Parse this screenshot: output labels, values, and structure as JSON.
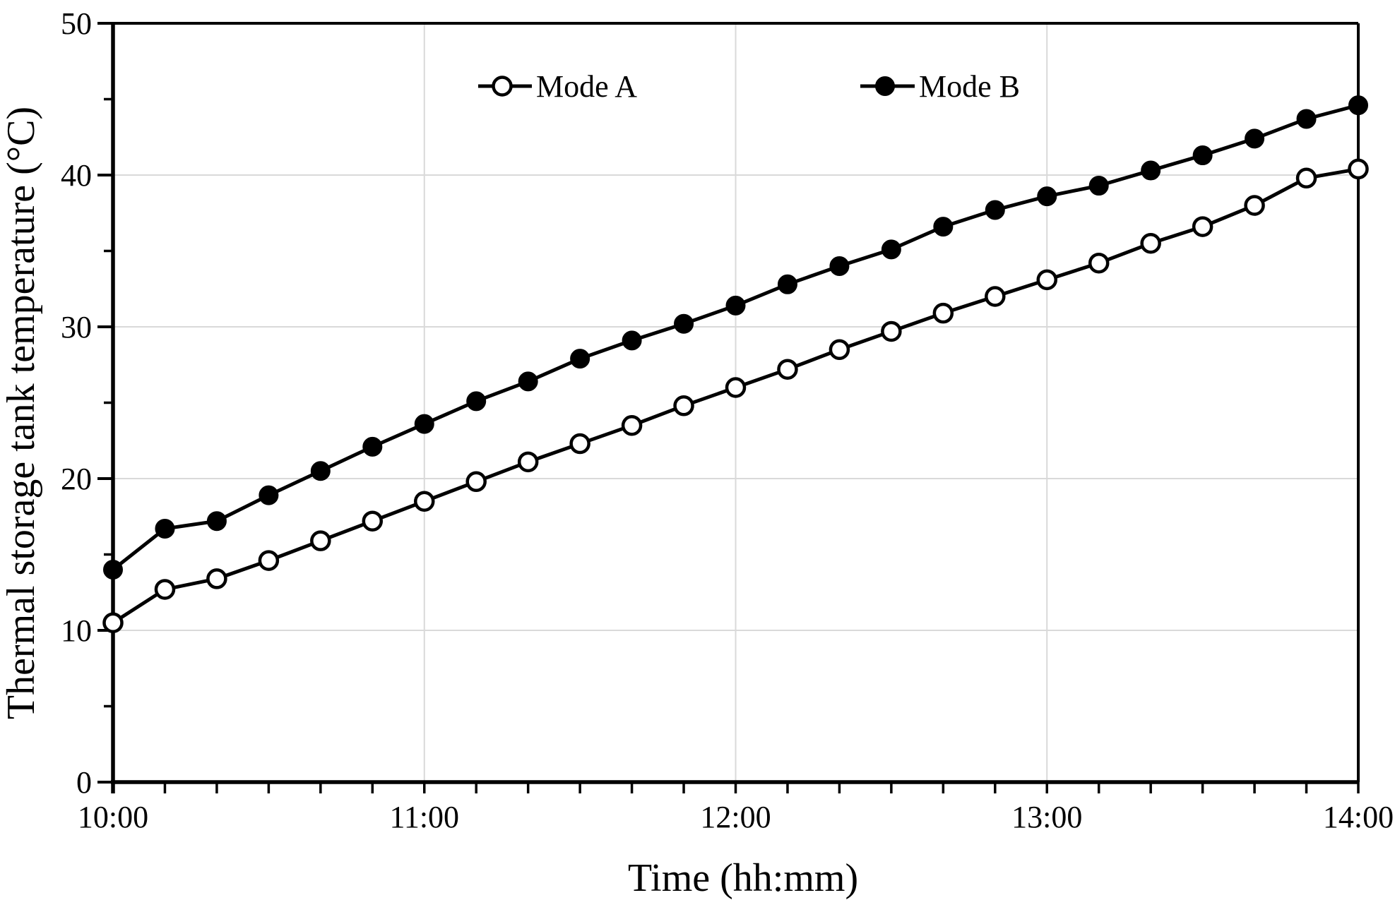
{
  "chart_data": {
    "type": "line",
    "title": "",
    "xlabel": "Time (hh:mm)",
    "ylabel": "Thermal storage tank temperature (°C)",
    "x_minutes": [
      600,
      610,
      620,
      630,
      640,
      650,
      660,
      670,
      680,
      690,
      700,
      710,
      720,
      730,
      740,
      750,
      760,
      770,
      780,
      790,
      800,
      810,
      820,
      830,
      840
    ],
    "x_tick_minutes": [
      600,
      660,
      720,
      780,
      840
    ],
    "x_tick_labels": [
      "10:00",
      "11:00",
      "12:00",
      "13:00",
      "14:00"
    ],
    "xlim_minutes": [
      600,
      840
    ],
    "ylim": [
      0,
      50
    ],
    "y_major_ticks": [
      0,
      10,
      20,
      30,
      40,
      50
    ],
    "y_minor_ticks": [
      5,
      15,
      25,
      35,
      45
    ],
    "grid": {
      "on": true,
      "horizontal_at": [
        10,
        20,
        30,
        40
      ],
      "vertical_at_minutes": [
        660,
        720,
        780
      ]
    },
    "legend": {
      "position": "top-inside-horizontal"
    },
    "series": [
      {
        "name": "Mode A",
        "marker": "open-circle",
        "color": "#000000",
        "values": [
          10.5,
          12.7,
          13.4,
          14.6,
          15.9,
          17.2,
          18.5,
          19.8,
          21.1,
          22.3,
          23.5,
          24.8,
          26.0,
          27.2,
          28.5,
          29.7,
          30.9,
          32.0,
          33.1,
          34.2,
          35.5,
          36.6,
          38.0,
          39.8,
          40.4
        ]
      },
      {
        "name": "Mode B",
        "marker": "filled-circle",
        "color": "#000000",
        "values": [
          14.0,
          16.7,
          17.2,
          18.9,
          20.5,
          22.1,
          23.6,
          25.1,
          26.4,
          27.9,
          29.1,
          30.2,
          31.4,
          32.8,
          34.0,
          35.1,
          36.6,
          37.7,
          38.6,
          39.3,
          40.3,
          41.3,
          42.4,
          43.7,
          44.6
        ]
      }
    ]
  },
  "colors": {
    "background": "#ffffff",
    "axis": "#000000",
    "gridline": "#d9d9d9",
    "text": "#000000"
  }
}
